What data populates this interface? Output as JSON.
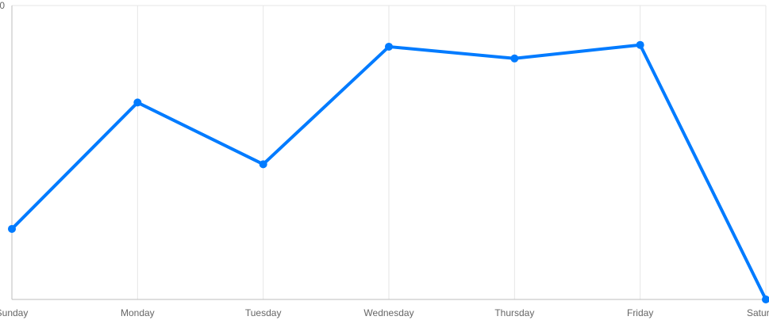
{
  "chart_data": {
    "type": "line",
    "title": "",
    "xlabel": "",
    "ylabel": "",
    "categories": [
      "Sunday",
      "Monday",
      "Tuesday",
      "Wednesday",
      "Thursday",
      "Friday",
      "Saturday"
    ],
    "series": [
      {
        "values": [
          24,
          67,
          46,
          86,
          82,
          86.6,
          0
        ],
        "color": "#007bff"
      }
    ],
    "y_tick_labels": [
      "0"
    ],
    "ylim": [
      0,
      100
    ],
    "grid": true,
    "legend": "none"
  }
}
